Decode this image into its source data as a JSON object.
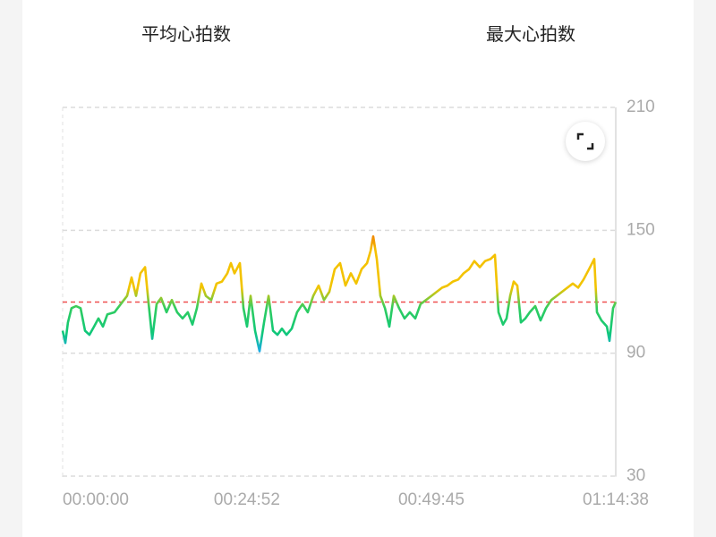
{
  "header": {
    "labels": [
      "平均心拍数",
      "最大心拍数"
    ]
  },
  "chart_data": {
    "type": "line",
    "x": [
      0,
      22,
      43,
      72,
      109,
      145,
      181,
      217,
      254,
      290,
      326,
      362,
      420,
      471,
      522,
      558,
      594,
      630,
      667,
      696,
      725,
      761,
      797,
      841,
      884,
      927,
      971,
      1014,
      1051,
      1087,
      1123,
      1159,
      1203,
      1246,
      1290,
      1333,
      1362,
      1391,
      1435,
      1464,
      1493,
      1522,
      1558,
      1594,
      1630,
      1667,
      1703,
      1739,
      1775,
      1812,
      1855,
      1898,
      1942,
      1985,
      2029,
      2072,
      2116,
      2159,
      2203,
      2246,
      2290,
      2333,
      2377,
      2420,
      2464,
      2493,
      2514,
      2543,
      2572,
      2609,
      2645,
      2681,
      2724,
      2768,
      2811,
      2855,
      2898,
      2942,
      2985,
      3029,
      3072,
      3116,
      3159,
      3203,
      3246,
      3290,
      3333,
      3377,
      3420,
      3464,
      3500,
      3529,
      3565,
      3594,
      3623,
      3652,
      3681,
      3710,
      3746,
      3782,
      3826,
      3869,
      3913,
      3956,
      4000,
      4043,
      4087,
      4130,
      4174,
      4217,
      4261,
      4304,
      4326,
      4362,
      4406,
      4427,
      4456,
      4478
    ],
    "values": [
      101,
      95,
      105,
      112,
      113,
      112,
      101,
      99,
      103,
      107,
      103,
      109,
      110,
      114,
      118,
      127,
      118,
      129,
      132,
      114,
      97,
      114,
      117,
      110,
      116,
      110,
      107,
      110,
      104,
      112,
      124,
      118,
      116,
      124,
      125,
      129,
      134,
      129,
      134,
      112,
      103,
      118,
      101,
      91,
      105,
      118,
      101,
      99,
      102,
      99,
      102,
      110,
      114,
      110,
      118,
      123,
      116,
      120,
      131,
      134,
      123,
      129,
      124,
      131,
      134,
      140,
      147,
      136,
      118,
      112,
      103,
      118,
      112,
      107,
      110,
      107,
      114,
      116,
      118,
      120,
      122,
      123,
      125,
      126,
      129,
      131,
      135,
      132,
      135,
      136,
      138,
      110,
      104,
      107,
      118,
      125,
      123,
      105,
      107,
      110,
      113,
      106,
      112,
      116,
      118,
      120,
      122,
      124,
      122,
      126,
      131,
      136,
      110,
      106,
      103,
      96,
      112,
      115
    ],
    "xlim": [
      0,
      4478
    ],
    "ylim": [
      30,
      210
    ],
    "xticks": [
      {
        "value": 0,
        "label": "00:00:00"
      },
      {
        "value": 1492,
        "label": "00:24:52"
      },
      {
        "value": 2985,
        "label": "00:49:45"
      },
      {
        "value": 4478,
        "label": "01:14:38"
      }
    ],
    "yticks": [
      30,
      90,
      150,
      210
    ],
    "grid": true,
    "reference_line": {
      "value": 115,
      "color": "#f05050"
    },
    "color_stops": [
      {
        "value": 90,
        "color": "#1aa8f0"
      },
      {
        "value": 100,
        "color": "#10c878"
      },
      {
        "value": 112,
        "color": "#30cc60"
      },
      {
        "value": 122,
        "color": "#f2c400"
      },
      {
        "value": 140,
        "color": "#f5c000"
      },
      {
        "value": 147,
        "color": "#f08a00"
      }
    ]
  }
}
